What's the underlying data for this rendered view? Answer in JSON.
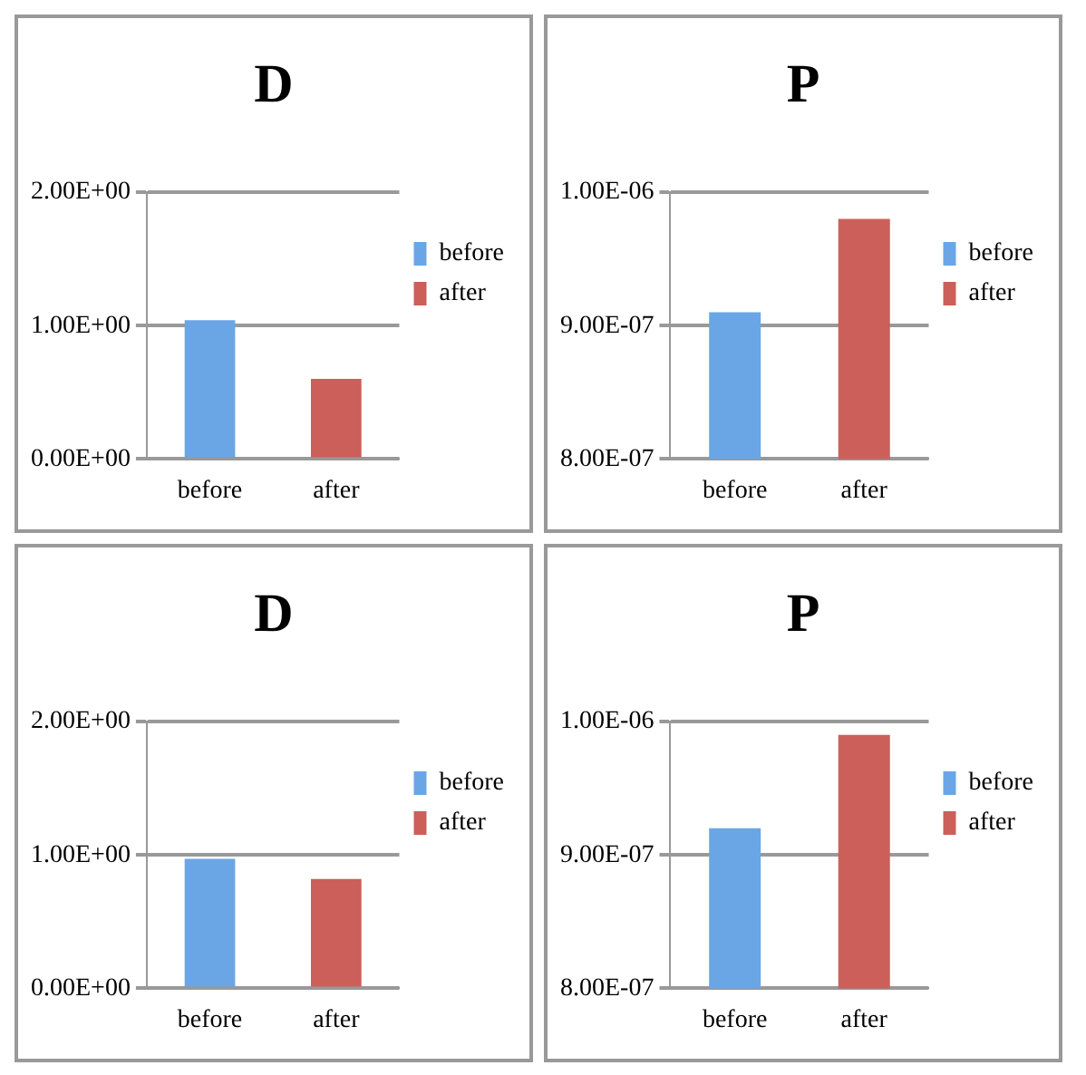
{
  "chart_data": [
    {
      "type": "bar",
      "title": "D",
      "categories": [
        "before",
        "after"
      ],
      "series": [
        {
          "name": "before",
          "color": "#6aa6e6",
          "values": [
            1.04,
            null
          ]
        },
        {
          "name": "after",
          "color": "#cc5f5a",
          "values": [
            null,
            0.6
          ]
        }
      ],
      "ylim": [
        0,
        2
      ],
      "yticks": [
        {
          "value": 0,
          "label": "0.00E+00"
        },
        {
          "value": 1,
          "label": "1.00E+00"
        },
        {
          "value": 2,
          "label": "2.00E+00"
        }
      ],
      "grid": "y",
      "legend": "right"
    },
    {
      "type": "bar",
      "title": "P",
      "categories": [
        "before",
        "after"
      ],
      "series": [
        {
          "name": "before",
          "color": "#6aa6e6",
          "values": [
            9.1e-07,
            null
          ]
        },
        {
          "name": "after",
          "color": "#cc5f5a",
          "values": [
            null,
            9.8e-07
          ]
        }
      ],
      "ylim": [
        8e-07,
        1e-06
      ],
      "yticks": [
        {
          "value": 8e-07,
          "label": "8.00E-07"
        },
        {
          "value": 9e-07,
          "label": "9.00E-07"
        },
        {
          "value": 1e-06,
          "label": "1.00E-06"
        }
      ],
      "grid": "y",
      "legend": "right"
    },
    {
      "type": "bar",
      "title": "D",
      "categories": [
        "before",
        "after"
      ],
      "series": [
        {
          "name": "before",
          "color": "#6aa6e6",
          "values": [
            0.97,
            null
          ]
        },
        {
          "name": "after",
          "color": "#cc5f5a",
          "values": [
            null,
            0.82
          ]
        }
      ],
      "ylim": [
        0,
        2
      ],
      "yticks": [
        {
          "value": 0,
          "label": "0.00E+00"
        },
        {
          "value": 1,
          "label": "1.00E+00"
        },
        {
          "value": 2,
          "label": "2.00E+00"
        }
      ],
      "grid": "y",
      "legend": "right"
    },
    {
      "type": "bar",
      "title": "P",
      "categories": [
        "before",
        "after"
      ],
      "series": [
        {
          "name": "before",
          "color": "#6aa6e6",
          "values": [
            9.2e-07,
            null
          ]
        },
        {
          "name": "after",
          "color": "#cc5f5a",
          "values": [
            null,
            9.9e-07
          ]
        }
      ],
      "ylim": [
        8e-07,
        1e-06
      ],
      "yticks": [
        {
          "value": 8e-07,
          "label": "8.00E-07"
        },
        {
          "value": 9e-07,
          "label": "9.00E-07"
        },
        {
          "value": 1e-06,
          "label": "1.00E-06"
        }
      ],
      "grid": "y",
      "legend": "right"
    }
  ]
}
